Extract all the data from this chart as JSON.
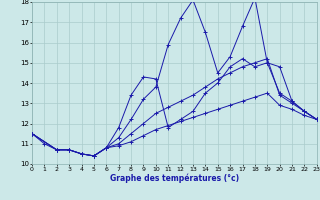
{
  "xlabel": "Graphe des températures (°c)",
  "background_color": "#cce8e8",
  "grid_color": "#aacccc",
  "line_color": "#1a1aaa",
  "xlim": [
    0,
    23
  ],
  "ylim": [
    10,
    18
  ],
  "xticks": [
    0,
    1,
    2,
    3,
    4,
    5,
    6,
    7,
    8,
    9,
    10,
    11,
    12,
    13,
    14,
    15,
    16,
    17,
    18,
    19,
    20,
    21,
    22,
    23
  ],
  "yticks": [
    10,
    11,
    12,
    13,
    14,
    15,
    16,
    17,
    18
  ],
  "series": [
    {
      "x": [
        0,
        1,
        2,
        3,
        4,
        5,
        6,
        7,
        8,
        9,
        10,
        11,
        12,
        13,
        14,
        15,
        16,
        17,
        18,
        19,
        20,
        21,
        22,
        23
      ],
      "y": [
        11.5,
        11.0,
        10.7,
        10.7,
        10.5,
        10.4,
        10.8,
        11.3,
        12.2,
        13.2,
        13.8,
        15.9,
        17.2,
        18.1,
        16.5,
        14.5,
        15.3,
        16.8,
        18.2,
        15.0,
        14.8,
        13.1,
        12.6,
        12.2
      ],
      "markers": [
        0,
        1,
        2,
        3,
        4,
        5,
        7,
        8,
        9,
        10,
        11,
        12,
        13,
        14,
        15,
        16,
        17,
        18,
        19,
        20,
        21,
        22,
        23
      ]
    },
    {
      "x": [
        0,
        2,
        3,
        4,
        5,
        6,
        7,
        8,
        9,
        10,
        11,
        12,
        13,
        14,
        15,
        16,
        17,
        18,
        19,
        20,
        21,
        22,
        23
      ],
      "y": [
        11.5,
        10.7,
        10.7,
        10.5,
        10.4,
        10.8,
        11.8,
        13.4,
        14.3,
        14.2,
        11.8,
        12.2,
        12.6,
        13.5,
        14.0,
        14.8,
        15.2,
        14.8,
        15.0,
        13.5,
        13.1,
        12.6,
        12.2
      ],
      "markers": [
        0,
        2,
        3,
        4,
        5,
        7,
        8,
        9,
        10,
        11,
        12,
        13,
        14,
        15,
        16,
        17,
        18,
        19,
        20,
        21,
        22,
        23
      ]
    },
    {
      "x": [
        0,
        2,
        3,
        4,
        5,
        6,
        7,
        8,
        9,
        10,
        11,
        12,
        13,
        14,
        15,
        16,
        17,
        18,
        19,
        20,
        21,
        22,
        23
      ],
      "y": [
        11.5,
        10.7,
        10.7,
        10.5,
        10.4,
        10.8,
        11.0,
        11.5,
        12.0,
        12.5,
        12.8,
        13.1,
        13.4,
        13.8,
        14.2,
        14.5,
        14.8,
        15.0,
        15.2,
        13.4,
        13.0,
        12.6,
        12.2
      ],
      "markers": [
        0,
        2,
        3,
        4,
        5,
        7,
        8,
        9,
        10,
        11,
        12,
        13,
        14,
        15,
        16,
        17,
        18,
        19,
        20,
        21,
        22,
        23
      ]
    },
    {
      "x": [
        0,
        2,
        3,
        4,
        5,
        6,
        7,
        8,
        9,
        10,
        11,
        12,
        13,
        14,
        15,
        16,
        17,
        18,
        19,
        20,
        21,
        22,
        23
      ],
      "y": [
        11.5,
        10.7,
        10.7,
        10.5,
        10.4,
        10.8,
        10.9,
        11.1,
        11.4,
        11.7,
        11.9,
        12.1,
        12.3,
        12.5,
        12.7,
        12.9,
        13.1,
        13.3,
        13.5,
        12.9,
        12.7,
        12.4,
        12.2
      ],
      "markers": [
        0,
        2,
        3,
        4,
        5,
        7,
        8,
        9,
        10,
        11,
        12,
        13,
        14,
        15,
        16,
        17,
        18,
        19,
        20,
        21,
        22,
        23
      ]
    }
  ]
}
